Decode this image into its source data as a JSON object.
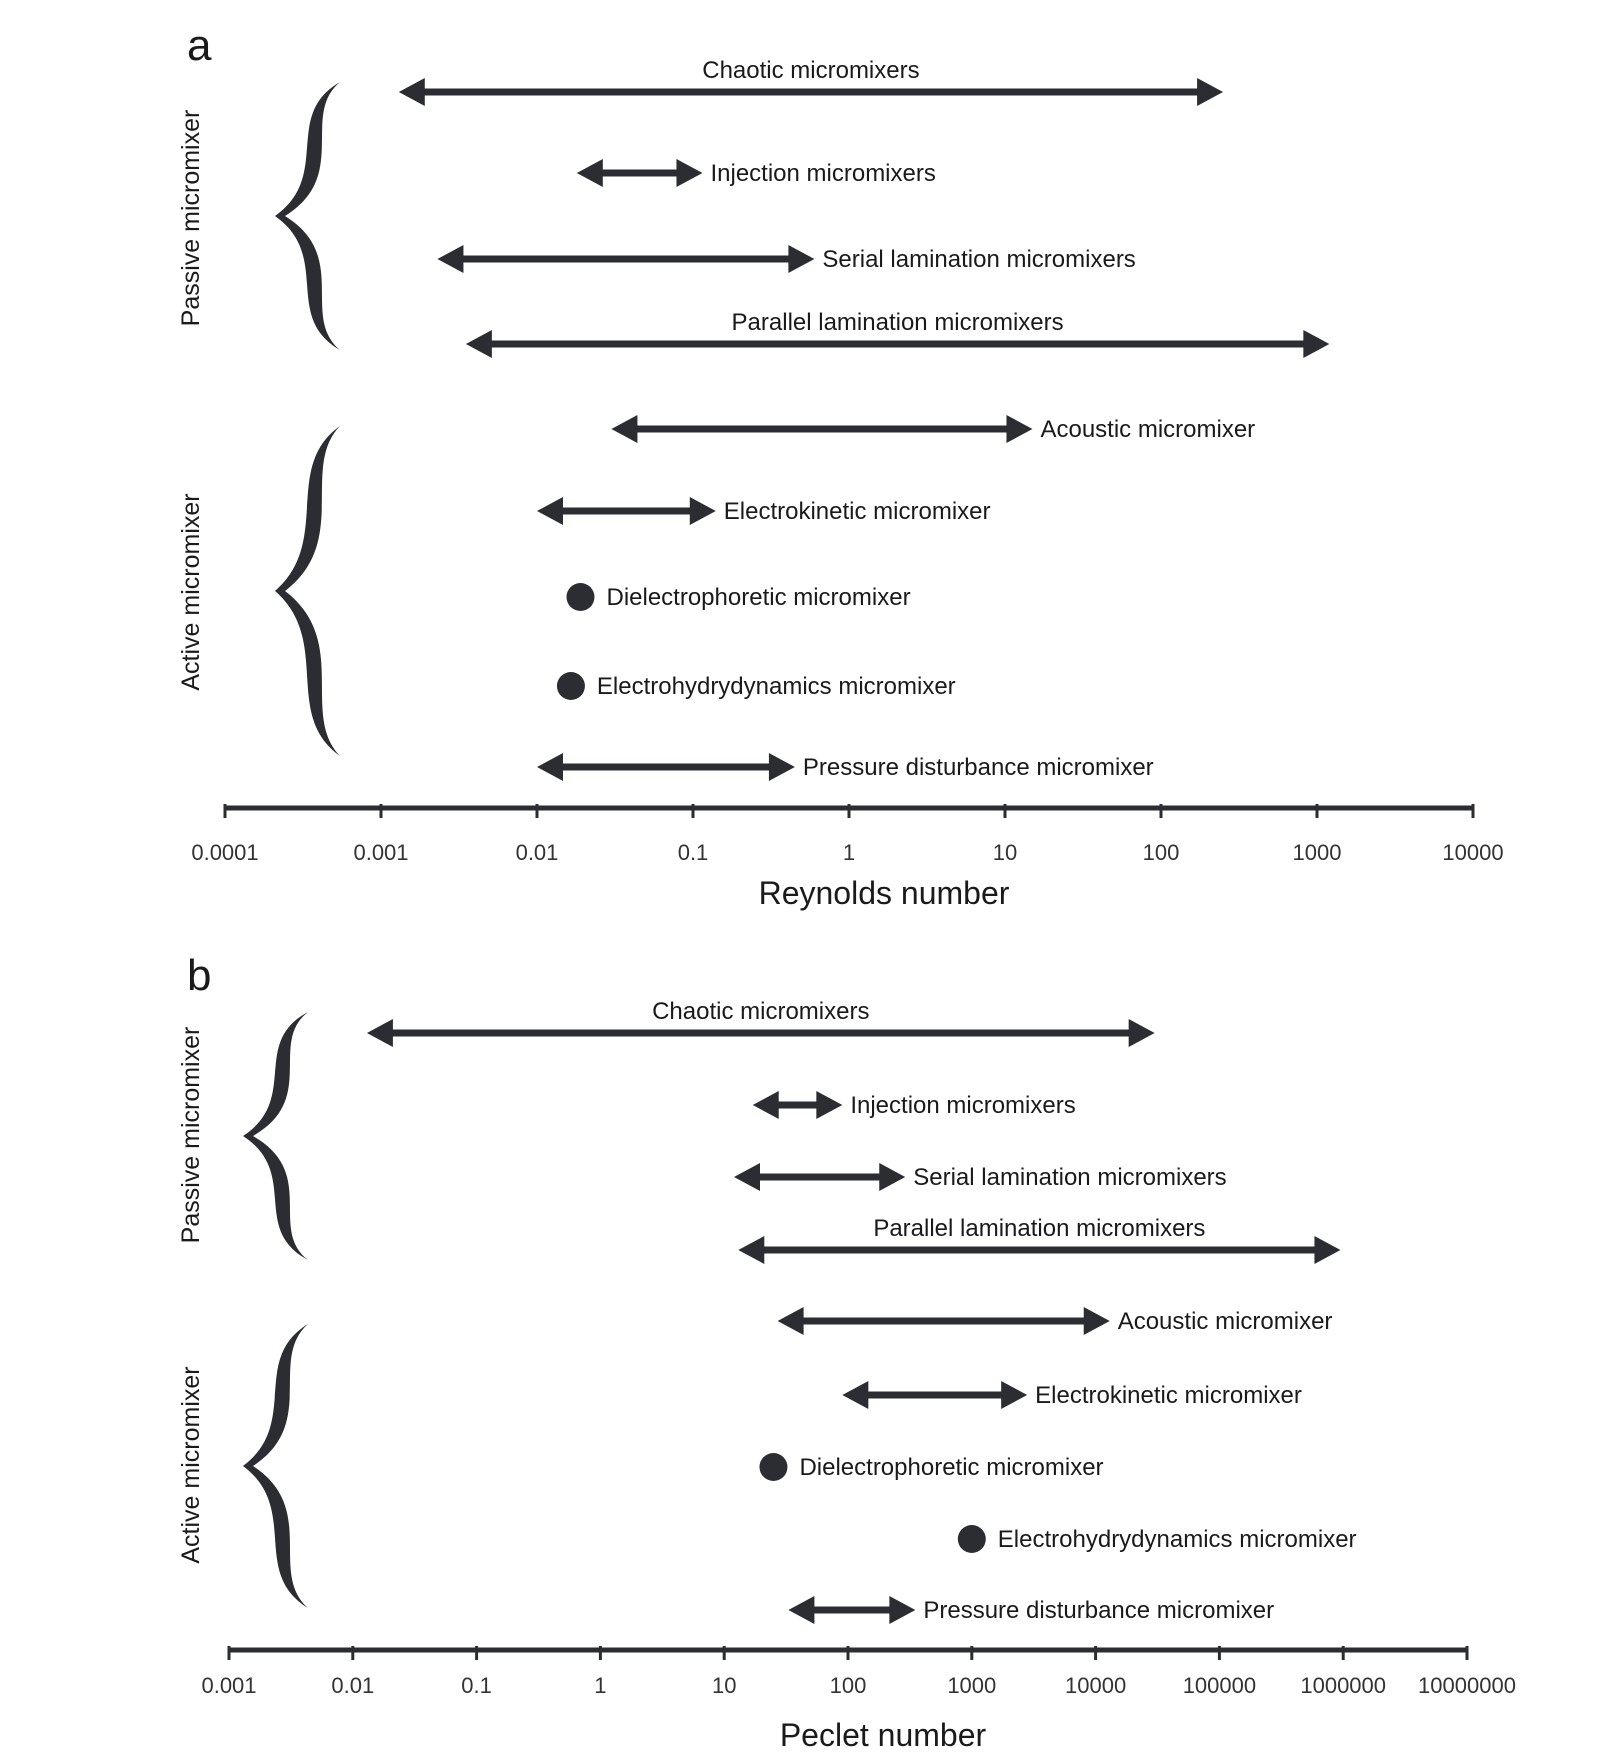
{
  "colors": {
    "mark": "#2b2d33",
    "axis": "#2b2d33",
    "text": "#1a1a1a"
  },
  "chart_data": [
    {
      "type": "range-chart",
      "panel_label": "a",
      "xlabel": "Reynolds number",
      "xscale": "log",
      "xlim": [
        0.0001,
        10000
      ],
      "ticks": [
        "0.0001",
        "0.001",
        "0.01",
        "0.1",
        "1",
        "10",
        "100",
        "1000",
        "10000"
      ],
      "groups": [
        {
          "label": "Passive micromixer",
          "items": [
            0,
            1,
            2,
            3
          ]
        },
        {
          "label": "Active micromixer",
          "items": [
            4,
            5,
            6,
            7,
            8
          ]
        }
      ],
      "items": [
        {
          "label": "Chaotic micromixers",
          "kind": "range",
          "min": 0.0013,
          "max": 250,
          "label_pos": "above"
        },
        {
          "label": "Injection micromixers",
          "kind": "range",
          "min": 0.018,
          "max": 0.115,
          "label_pos": "right"
        },
        {
          "label": "Serial lamination micromixers",
          "kind": "range",
          "min": 0.0023,
          "max": 0.6,
          "label_pos": "right"
        },
        {
          "label": "Parallel lamination micromixers",
          "kind": "range",
          "min": 0.0035,
          "max": 1200,
          "label_pos": "above"
        },
        {
          "label": "Acoustic micromixer",
          "kind": "range",
          "min": 0.03,
          "max": 15,
          "label_pos": "right"
        },
        {
          "label": "Electrokinetic micromixer",
          "kind": "range",
          "min": 0.01,
          "max": 0.14,
          "label_pos": "right"
        },
        {
          "label": "Dielectrophoretic micromixer",
          "kind": "point",
          "value": 0.019,
          "label_pos": "right"
        },
        {
          "label": "Electrohydrydynamics micromixer",
          "kind": "point",
          "value": 0.0165,
          "label_pos": "right"
        },
        {
          "label": "Pressure disturbance micromixer",
          "kind": "range",
          "min": 0.01,
          "max": 0.45,
          "label_pos": "right"
        }
      ]
    },
    {
      "type": "range-chart",
      "panel_label": "b",
      "xlabel": "Peclet number",
      "xscale": "log",
      "xlim": [
        0.001,
        10000000
      ],
      "ticks": [
        "0.001",
        "0.01",
        "0.1",
        "1",
        "10",
        "100",
        "1000",
        "10000",
        "100000",
        "1000000",
        "10000000"
      ],
      "groups": [
        {
          "label": "Passive micromixer",
          "items": [
            0,
            1,
            2,
            3
          ]
        },
        {
          "label": "Active micromixer",
          "items": [
            4,
            5,
            6,
            7,
            8
          ]
        }
      ],
      "items": [
        {
          "label": "Chaotic micromixers",
          "kind": "range",
          "min": 0.013,
          "max": 30000,
          "label_pos": "above"
        },
        {
          "label": "Injection micromixers",
          "kind": "range",
          "min": 17,
          "max": 90,
          "label_pos": "right"
        },
        {
          "label": "Serial lamination micromixers",
          "kind": "range",
          "min": 12,
          "max": 290,
          "label_pos": "right"
        },
        {
          "label": "Parallel lamination micromixers",
          "kind": "range",
          "min": 13,
          "max": 950000,
          "label_pos": "above"
        },
        {
          "label": "Acoustic micromixer",
          "kind": "range",
          "min": 27,
          "max": 13000,
          "label_pos": "right"
        },
        {
          "label": "Electrokinetic micromixer",
          "kind": "range",
          "min": 90,
          "max": 2800,
          "label_pos": "right"
        },
        {
          "label": "Dielectrophoretic micromixer",
          "kind": "point",
          "value": 25,
          "label_pos": "right"
        },
        {
          "label": "Electrohydrydynamics micromixer",
          "kind": "point",
          "value": 1000,
          "label_pos": "right"
        },
        {
          "label": "Pressure disturbance micromixer",
          "kind": "range",
          "min": 33,
          "max": 350,
          "label_pos": "right"
        }
      ]
    }
  ]
}
